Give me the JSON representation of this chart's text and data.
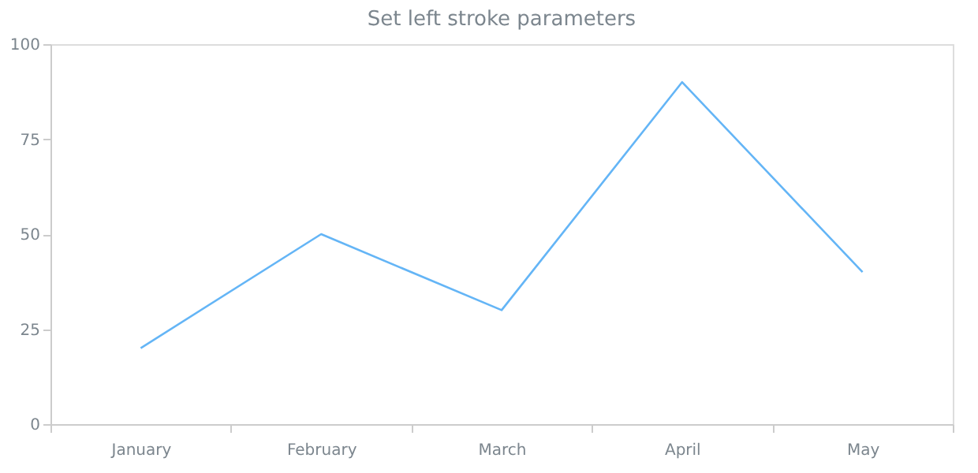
{
  "chart_data": {
    "type": "line",
    "title": "Set left stroke parameters",
    "categories": [
      "January",
      "February",
      "March",
      "April",
      "May"
    ],
    "series": [
      {
        "color": "#64b5f6",
        "values": [
          20,
          50,
          30,
          90,
          40
        ]
      }
    ],
    "ylim": [
      0,
      100
    ],
    "yticks": [
      0,
      25,
      50,
      75,
      100
    ],
    "grid": false,
    "legend": false,
    "marker": "none",
    "line_style": "solid"
  }
}
